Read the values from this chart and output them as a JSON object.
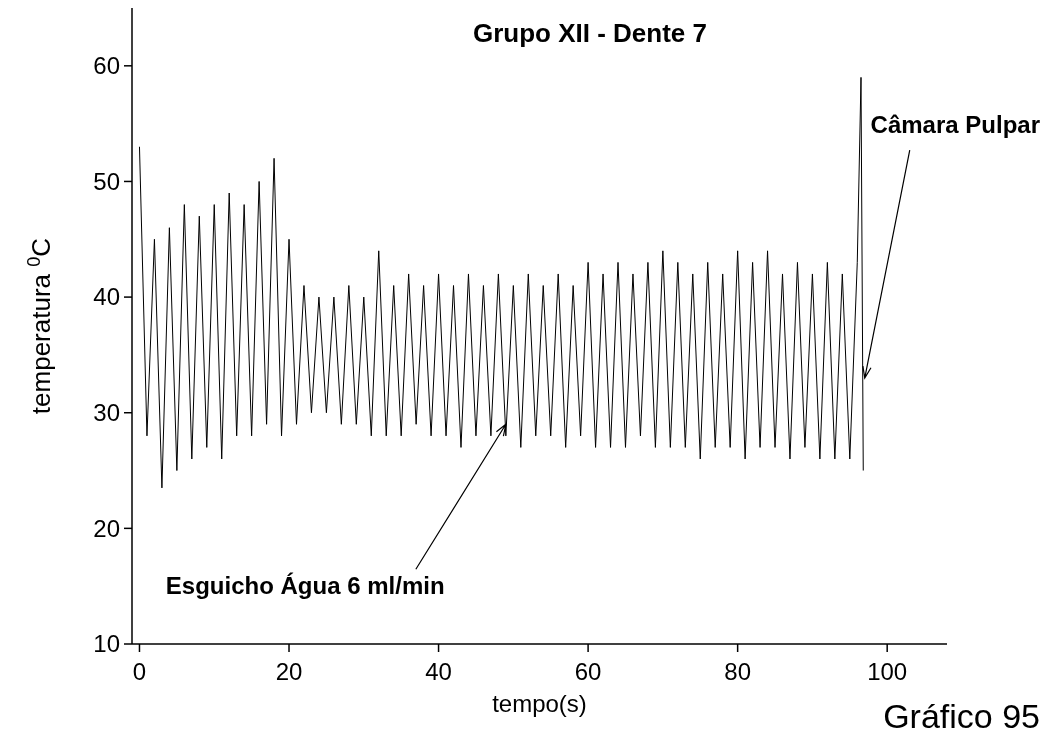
{
  "chart_data": {
    "type": "line",
    "title": "Grupo XII - Dente 7",
    "xlabel": "tempo(s)",
    "ylabel": "temperatura $^{0}$C",
    "xlim": [
      -1,
      108
    ],
    "ylim": [
      10,
      65
    ],
    "xticks": [
      0,
      20,
      40,
      60,
      80,
      100
    ],
    "yticks": [
      10,
      20,
      30,
      40,
      50,
      60
    ],
    "grid": false,
    "annotations": [
      {
        "text": "Câmara Pulpar",
        "x": 97,
        "y": 33
      },
      {
        "text": "Esguicho Água 6 ml/min",
        "x": 49,
        "y": 29
      },
      "Gráfico 95"
    ],
    "series": [
      {
        "color": "#000000",
        "x": [
          0,
          1,
          2,
          3,
          4,
          5,
          6,
          7,
          8,
          9,
          10,
          11,
          12,
          13,
          14,
          15,
          16,
          17,
          18,
          19,
          20,
          21,
          22,
          23,
          24,
          25,
          26,
          27,
          28,
          29,
          30,
          31,
          32,
          33,
          34,
          35,
          36,
          37,
          38,
          39,
          40,
          41,
          42,
          43,
          44,
          45,
          46,
          47,
          48,
          49,
          50,
          51,
          52,
          53,
          54,
          55,
          56,
          57,
          58,
          59,
          60,
          61,
          62,
          63,
          64,
          65,
          66,
          67,
          68,
          69,
          70,
          71,
          72,
          73,
          74,
          75,
          76,
          77,
          78,
          79,
          80,
          81,
          82,
          83,
          84,
          85,
          86,
          87,
          88,
          89,
          90,
          91,
          92,
          93,
          94,
          95,
          96,
          96.5,
          96.8
        ],
        "values": [
          53,
          28,
          45,
          23.5,
          46,
          25,
          48,
          26,
          47,
          27,
          48,
          26,
          49,
          28,
          48,
          28,
          50,
          29,
          52,
          28,
          45,
          29,
          41,
          30,
          40,
          30,
          40,
          29,
          41,
          29,
          40,
          28,
          44,
          28,
          41,
          28,
          42,
          29,
          41,
          28,
          42,
          28,
          41,
          27,
          42,
          28,
          41,
          28,
          42,
          28,
          41,
          27,
          42,
          28,
          41,
          28,
          42,
          27,
          41,
          28,
          43,
          27,
          42,
          27,
          43,
          27,
          42,
          28,
          43,
          27,
          44,
          27,
          43,
          27,
          42,
          26,
          43,
          27,
          42,
          27,
          44,
          26,
          43,
          27,
          44,
          27,
          42,
          26,
          43,
          27,
          42,
          26,
          43,
          26,
          42,
          26,
          43,
          59,
          25
        ]
      }
    ]
  }
}
